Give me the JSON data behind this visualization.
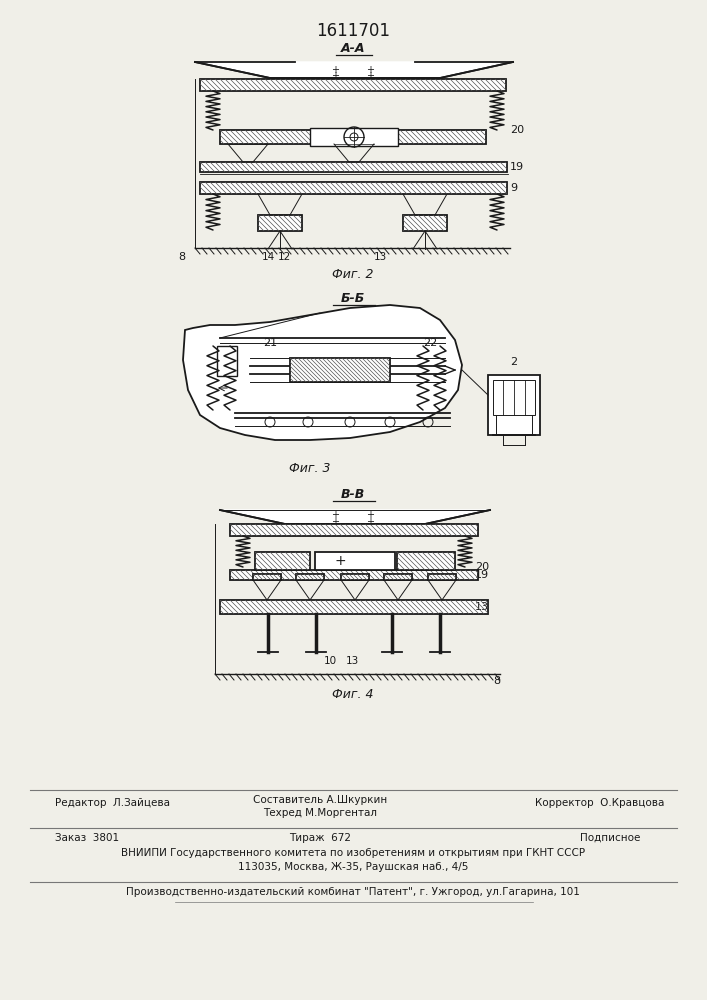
{
  "title": "1611701",
  "background_color": "#f0efe8",
  "line_color": "#1a1a1a",
  "fig1_label": "А-А",
  "fig1_caption": "Фиг. 2",
  "fig2_label": "Б-Б",
  "fig2_caption": "Фиг. 3",
  "fig3_label": "В-В",
  "fig3_caption": "Фиг. 4",
  "footer_line1_left": "Редактор  Л.Зайцева",
  "footer_line1_center_top": "Составитель А.Шкуркин",
  "footer_line1_center_bot": "Техред М.Моргентал",
  "footer_line1_right": "Корректор  О.Кравцова",
  "footer_line2_col1": "Заказ  3801",
  "footer_line2_col2": "Тираж  672",
  "footer_line2_col3": "Подписное",
  "footer_line3": "ВНИИПИ Государственного комитета по изобретениям и открытиям при ГКНТ СССР",
  "footer_line4": "113035, Москва, Ж-35, Раушская наб., 4/5",
  "footer_line5": "Производственно-издательский комбинат \"Патент\", г. Ужгород, ул.Гагарина, 101"
}
